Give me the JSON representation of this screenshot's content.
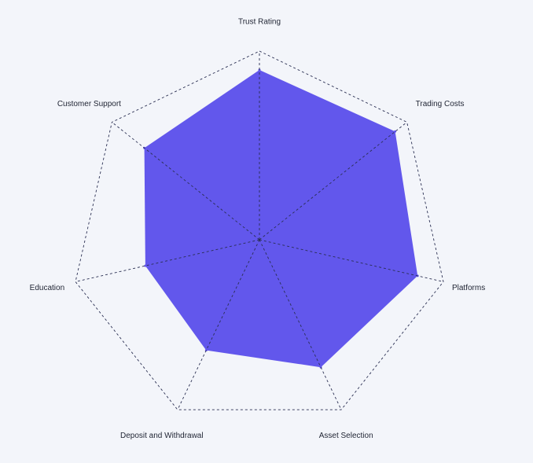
{
  "chart_data": {
    "type": "radar",
    "categories": [
      "Trust Rating",
      "Trading Costs",
      "Platforms",
      "Asset Selection",
      "Deposit and Withdrawal",
      "Education",
      "Customer Support"
    ],
    "values": [
      90,
      92,
      86,
      75,
      65,
      62,
      78
    ],
    "rmax": 100,
    "grid": true,
    "legend": "none",
    "colors": {
      "fill": "#6257ec",
      "grid": "#2a2f52",
      "text": "#1f2433",
      "background": "#f3f5fa"
    }
  }
}
